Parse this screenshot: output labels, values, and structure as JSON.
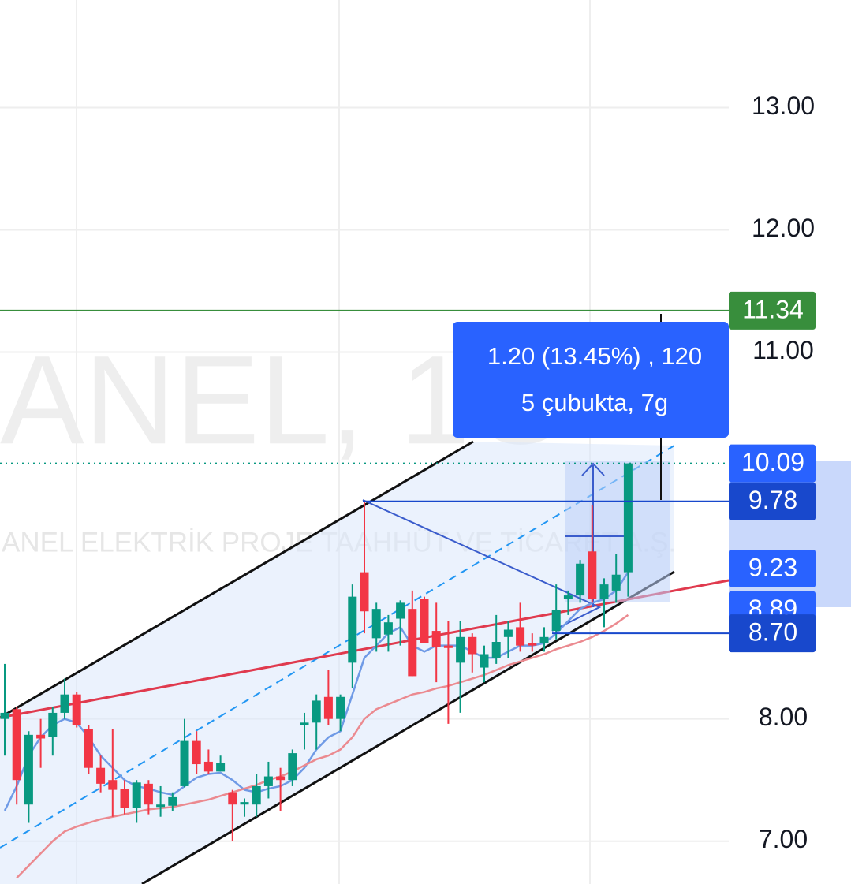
{
  "chart_data": {
    "type": "candlestick",
    "watermark": "ANEL, 1G",
    "description": "ANEL ELEKTRİK PROJE TAAHHÜT VE TİCARET A.Ş.",
    "up_color": "#089981",
    "down_color": "#f23645",
    "ylim": [
      6.65,
      13.88
    ],
    "yticks": [
      {
        "value": 13,
        "label": "13.00"
      },
      {
        "value": 12,
        "label": "12.00"
      },
      {
        "value": 11,
        "label": "11.00"
      },
      {
        "value": 8,
        "label": "8.00"
      },
      {
        "value": 7,
        "label": "7.00"
      }
    ],
    "grid": true,
    "open": [
      8.0,
      8.08,
      7.3,
      7.87,
      7.85,
      8.05,
      8.2,
      7.92,
      7.6,
      7.5,
      7.43,
      7.27,
      7.47,
      7.28,
      7.29,
      7.45,
      7.82,
      7.65,
      7.57,
      7.4,
      7.3,
      7.3,
      7.45,
      7.53,
      7.5,
      7.95,
      7.97,
      8.18,
      8.0,
      8.46,
      9.2,
      8.66,
      8.69,
      8.82,
      8.9,
      8.98,
      8.72,
      8.6,
      8.46,
      8.67,
      8.42,
      8.5,
      8.67,
      8.75,
      8.62,
      8.62,
      8.72,
      8.98,
      9.01,
      9.37,
      8.98,
      9.05,
      9.2
    ],
    "high": [
      8.45,
      8.1,
      7.9,
      8.0,
      8.1,
      8.33,
      8.22,
      7.95,
      7.7,
      7.92,
      7.5,
      7.5,
      7.5,
      7.45,
      7.4,
      8.0,
      7.9,
      7.75,
      7.7,
      7.42,
      7.35,
      7.55,
      7.65,
      7.6,
      7.75,
      8.05,
      8.2,
      8.4,
      8.2,
      9.1,
      9.78,
      8.95,
      8.85,
      8.97,
      9.05,
      9.0,
      8.95,
      8.8,
      8.8,
      8.7,
      8.6,
      8.85,
      8.8,
      8.95,
      8.7,
      8.75,
      9.1,
      9.05,
      9.3,
      9.75,
      9.15,
      9.35,
      10.09
    ],
    "low": [
      7.7,
      7.3,
      7.15,
      7.6,
      7.7,
      8.0,
      7.93,
      7.55,
      7.4,
      7.2,
      7.22,
      7.15,
      7.22,
      7.2,
      7.25,
      7.44,
      7.55,
      7.55,
      7.6,
      7.0,
      7.2,
      7.2,
      7.35,
      7.25,
      7.45,
      7.75,
      7.75,
      7.95,
      7.9,
      8.25,
      8.7,
      8.55,
      8.55,
      8.6,
      8.35,
      8.62,
      8.3,
      7.96,
      8.05,
      8.38,
      8.3,
      8.45,
      8.5,
      8.55,
      8.55,
      8.55,
      8.65,
      8.85,
      8.95,
      8.95,
      8.75,
      8.95,
      9.0
    ],
    "close": [
      8.05,
      7.5,
      7.87,
      7.84,
      8.05,
      8.2,
      7.95,
      7.6,
      7.47,
      7.42,
      7.27,
      7.48,
      7.3,
      7.3,
      7.36,
      7.82,
      7.63,
      7.57,
      7.64,
      7.3,
      7.32,
      7.45,
      7.53,
      7.5,
      7.72,
      7.97,
      8.15,
      8.0,
      8.18,
      9.0,
      8.88,
      8.9,
      8.79,
      8.95,
      8.35,
      8.62,
      8.59,
      8.58,
      8.67,
      8.53,
      8.53,
      8.63,
      8.73,
      8.6,
      8.6,
      8.67,
      8.89,
      9.01,
      9.27,
      8.98,
      9.1,
      9.18,
      10.09
    ],
    "series": [
      {
        "color": "#6f9ae6",
        "values": [
          7.25,
          7.45,
          7.7,
          7.85,
          7.95,
          8.0,
          7.97,
          7.85,
          7.7,
          7.6,
          7.5,
          7.45,
          7.43,
          7.4,
          7.38,
          7.45,
          7.52,
          7.55,
          7.56,
          7.5,
          7.42,
          7.4,
          7.43,
          7.45,
          7.5,
          7.6,
          7.75,
          7.85,
          7.9,
          8.2,
          8.5,
          8.6,
          8.7,
          8.75,
          8.6,
          8.55,
          8.6,
          8.6,
          8.6,
          8.55,
          8.5,
          8.5,
          8.55,
          8.6,
          8.6,
          8.62,
          8.7,
          8.8,
          8.9,
          8.95,
          8.98,
          9.05,
          9.2
        ]
      },
      {
        "color": "#eb8a90",
        "values": [
          null,
          6.7,
          6.8,
          6.9,
          7.0,
          7.08,
          7.12,
          7.15,
          7.18,
          7.2,
          7.22,
          7.24,
          7.26,
          7.27,
          7.28,
          7.3,
          7.32,
          7.34,
          7.37,
          7.4,
          7.43,
          7.46,
          7.5,
          7.53,
          7.57,
          7.62,
          7.67,
          7.7,
          7.75,
          7.85,
          8.0,
          8.08,
          8.12,
          8.16,
          8.2,
          8.22,
          8.25,
          8.27,
          8.3,
          8.33,
          8.36,
          8.4,
          8.44,
          8.47,
          8.5,
          8.53,
          8.57,
          8.6,
          8.63,
          8.67,
          8.72,
          8.78,
          8.85
        ]
      }
    ],
    "price_tags": [
      {
        "value": 11.34,
        "color": "#388e3c"
      },
      {
        "value": {
          "value": 10.09,
          "label": "10.09"
        },
        "color": "#2962ff"
      },
      {
        "value": {
          "value": 9.78,
          "label": "9.78"
        },
        "color": "#1848cc"
      },
      {
        "value": {
          "value": 9.23,
          "label": "9.23"
        },
        "color": "#2962ff"
      },
      {
        "value": {
          "value": 8.89,
          "label": "8.89"
        },
        "color": "#2962ff"
      },
      {
        "value": {
          "value": 8.7,
          "label": "8.70"
        },
        "color": "#1848cc"
      }
    ],
    "measure": {
      "line1": "1.20 (13.45%) , 120",
      "line2": "5 çubukta, 7g",
      "color": "#2962ff"
    }
  }
}
